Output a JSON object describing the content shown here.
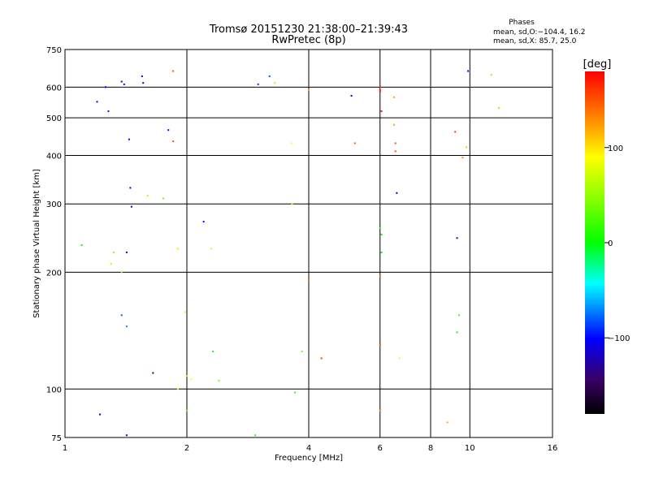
{
  "chart_data": {
    "type": "scatter",
    "title": "Tromsø 20151230 21:38:00–21:39:43",
    "subtitle": "RwPretec (8p)",
    "xlabel": "Frequency [MHz]",
    "ylabel": "Stationary phase Virtual Height [km]",
    "x_scale": "log",
    "y_scale": "log",
    "xlim": [
      1,
      16
    ],
    "ylim": [
      75,
      750
    ],
    "x_ticks": [
      1,
      2,
      4,
      6,
      8,
      10,
      16
    ],
    "x_tick_labels": [
      "1",
      "2",
      "4",
      "6",
      "8",
      "10",
      "16"
    ],
    "y_ticks": [
      75,
      100,
      200,
      300,
      400,
      500,
      600,
      750
    ],
    "y_tick_labels": [
      "75",
      "100",
      "200",
      "300",
      "400",
      "500",
      "600",
      "750"
    ],
    "grid": true,
    "stats": {
      "heading": "Phases",
      "line_o": "mean, sd,O:−104.4, 16.2",
      "line_x": "mean, sd,X:  85.7, 25.0"
    },
    "colorbar": {
      "label": "[deg]",
      "range": [
        -180,
        180
      ],
      "ticks": [
        100,
        0,
        -100
      ],
      "tick_labels": [
        "100",
        "0",
        "−100"
      ]
    },
    "series": [
      {
        "points": [
          [
            1.1,
            235,
            0
          ],
          [
            1.2,
            550,
            -110
          ],
          [
            1.28,
            520,
            -95
          ],
          [
            1.3,
            210,
            60
          ],
          [
            1.32,
            225,
            50
          ],
          [
            1.22,
            86,
            -120
          ],
          [
            1.26,
            600,
            -100
          ],
          [
            1.38,
            620,
            -150
          ],
          [
            1.38,
            155,
            -80
          ],
          [
            1.4,
            610,
            -105
          ],
          [
            1.42,
            225,
            -115
          ],
          [
            1.44,
            440,
            -100
          ],
          [
            1.45,
            330,
            -110
          ],
          [
            1.46,
            295,
            -120
          ],
          [
            1.42,
            145,
            -70
          ],
          [
            1.42,
            76,
            -120
          ],
          [
            1.55,
            640,
            -115
          ],
          [
            1.56,
            615,
            -105
          ],
          [
            1.65,
            110,
            -140
          ],
          [
            1.75,
            310,
            40
          ],
          [
            1.8,
            465,
            -110
          ],
          [
            1.85,
            660,
            150
          ],
          [
            1.85,
            435,
            150
          ],
          [
            1.9,
            230,
            70
          ],
          [
            1.9,
            100,
            70
          ],
          [
            1.98,
            158,
            80
          ],
          [
            2.0,
            88,
            40
          ],
          [
            2.0,
            108,
            70
          ],
          [
            2.05,
            106,
            90
          ],
          [
            1.98,
            74,
            80
          ],
          [
            2.2,
            270,
            -100
          ],
          [
            2.3,
            230,
            95
          ],
          [
            2.32,
            125,
            -10
          ],
          [
            2.4,
            105,
            40
          ],
          [
            2.95,
            76,
            10
          ],
          [
            3.0,
            610,
            -90
          ],
          [
            3.2,
            640,
            -80
          ],
          [
            3.3,
            615,
            60
          ],
          [
            3.7,
            98,
            10
          ],
          [
            3.85,
            125,
            40
          ],
          [
            4.0,
            190,
            140
          ],
          [
            4.0,
            590,
            120
          ],
          [
            4.3,
            120,
            160
          ],
          [
            5.1,
            570,
            -110
          ],
          [
            5.2,
            430,
            150
          ],
          [
            6.0,
            600,
            170
          ],
          [
            6.0,
            590,
            170
          ],
          [
            6.05,
            520,
            170
          ],
          [
            6.0,
            585,
            175
          ],
          [
            6.05,
            250,
            0
          ],
          [
            6.0,
            260,
            -10
          ],
          [
            6.05,
            225,
            0
          ],
          [
            6.0,
            195,
            140
          ],
          [
            6.0,
            130,
            150
          ],
          [
            6.0,
            88,
            130
          ],
          [
            6.5,
            565,
            120
          ],
          [
            6.5,
            480,
            120
          ],
          [
            6.55,
            430,
            150
          ],
          [
            6.55,
            410,
            150
          ],
          [
            6.6,
            320,
            -120
          ],
          [
            6.7,
            120,
            80
          ],
          [
            8.8,
            82,
            120
          ],
          [
            9.2,
            460,
            160
          ],
          [
            9.3,
            245,
            -130
          ],
          [
            9.4,
            155,
            20
          ],
          [
            9.3,
            140,
            -10
          ],
          [
            9.6,
            395,
            130
          ],
          [
            9.8,
            420,
            110
          ],
          [
            9.9,
            660,
            -100
          ],
          [
            11.3,
            645,
            110
          ],
          [
            11.8,
            530,
            110
          ],
          [
            1.38,
            200,
            40
          ],
          [
            1.6,
            315,
            60
          ],
          [
            3.62,
            430,
            90
          ],
          [
            3.64,
            300,
            100
          ]
        ]
      }
    ]
  }
}
